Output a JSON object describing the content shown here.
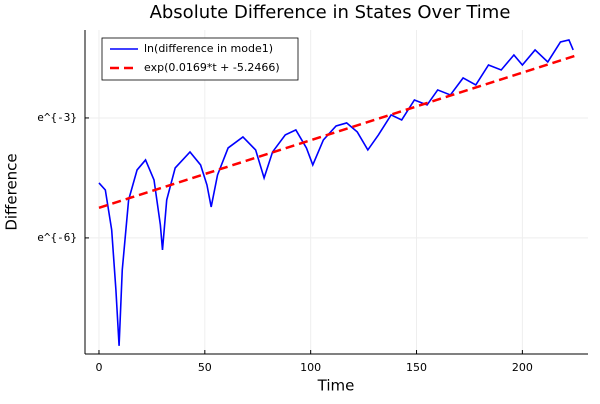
{
  "chart_data": {
    "type": "line",
    "title": "Absolute Difference in States Over Time",
    "x_label": "Time",
    "y_label": "Difference",
    "xlim": [
      -6.6,
      231
    ],
    "xticks": [
      0,
      50,
      100,
      150,
      200
    ],
    "ylim": [
      0.000136,
      0.449
    ],
    "log_scale_y": true,
    "yticks": [
      {
        "value": 0.04979,
        "label": "e^{-3}"
      },
      {
        "value": 0.002479,
        "label": "e^{-6}"
      }
    ],
    "grid": true,
    "legend_position": "top-left",
    "series": [
      {
        "name": "ln(difference in mode1)",
        "color": "#0000ff",
        "dashed": false,
        "x": [
          0,
          3,
          6,
          8,
          9.5,
          11,
          14,
          18,
          22,
          26,
          29,
          30,
          32,
          36,
          43,
          48,
          51,
          53,
          56,
          61,
          68,
          74,
          78,
          82,
          88,
          93,
          98,
          101,
          106,
          112,
          117,
          122,
          127,
          132,
          138,
          143,
          149,
          155,
          160,
          166,
          172,
          178,
          184,
          190,
          196,
          200,
          206,
          212,
          218,
          222,
          224
        ],
        "values": [
          0.0098,
          0.00823,
          0.00303,
          0.000676,
          0.000167,
          0.001114,
          0.00641,
          0.01357,
          0.01742,
          0.01057,
          0.00343,
          0.001836,
          0.00641,
          0.01426,
          0.02128,
          0.01537,
          0.00933,
          0.00538,
          0.01197,
          0.02352,
          0.03096,
          0.02237,
          0.01111,
          0.02128,
          0.03255,
          0.03688,
          0.02352,
          0.01537,
          0.02872,
          0.04076,
          0.04394,
          0.03508,
          0.02237,
          0.03255,
          0.05367,
          0.04736,
          0.07808,
          0.06891,
          0.1003,
          0.08848,
          0.1353,
          0.1136,
          0.1873,
          0.1653,
          0.2405,
          0.1873,
          0.2725,
          0.2019,
          0.3329,
          0.3499,
          0.2725
        ]
      },
      {
        "name": "exp(0.0169*t + -5.2466)",
        "color": "#ff0000",
        "dashed": true,
        "x": [
          0,
          225
        ],
        "values": [
          0.005261,
          0.236
        ]
      }
    ]
  }
}
